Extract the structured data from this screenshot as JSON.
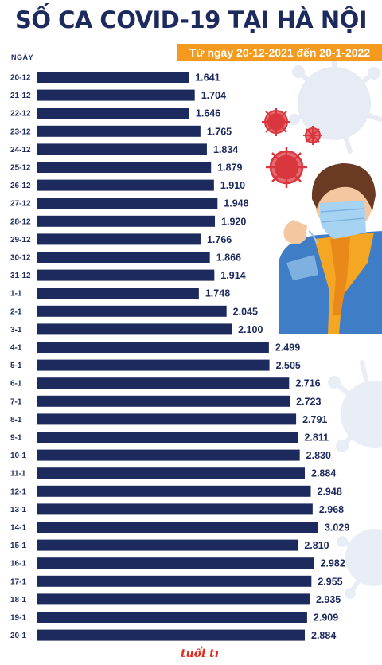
{
  "header": {
    "title": "SỐ CA COVID-19 TẠI HÀ NỘI",
    "subtitle": "Từ ngày 20-12-2021 đến 20-1-2022",
    "axis_label": "NGÀY"
  },
  "logo_text": "tuổi trẻ",
  "colors": {
    "bar": "#1d2a5e",
    "accent": "#f39a1f",
    "virus": "#d9363e",
    "text": "#1d2a5e"
  },
  "chart_data": {
    "type": "bar",
    "orientation": "horizontal",
    "title": "SỐ CA COVID-19 TẠI HÀ NỘI",
    "subtitle": "Từ ngày 20-12-2021 đến 20-1-2022",
    "ylabel": "NGÀY",
    "categories": [
      "20-12",
      "21-12",
      "22-12",
      "23-12",
      "24-12",
      "25-12",
      "26-12",
      "27-12",
      "28-12",
      "29-12",
      "30-12",
      "31-12",
      "1-1",
      "2-1",
      "3-1",
      "4-1",
      "5-1",
      "6-1",
      "7-1",
      "8-1",
      "9-1",
      "10-1",
      "11-1",
      "12-1",
      "13-1",
      "14-1",
      "15-1",
      "16-1",
      "17-1",
      "18-1",
      "19-1",
      "20-1"
    ],
    "values": [
      1641,
      1704,
      1646,
      1765,
      1834,
      1879,
      1910,
      1948,
      1920,
      1766,
      1866,
      1914,
      1748,
      2045,
      2100,
      2499,
      2505,
      2716,
      2723,
      2791,
      2811,
      2830,
      2884,
      2948,
      2968,
      3029,
      2810,
      2982,
      2955,
      2935,
      2909,
      2884
    ],
    "value_labels": [
      "1.641",
      "1.704",
      "1.646",
      "1.765",
      "1.834",
      "1.879",
      "1.910",
      "1.948",
      "1.920",
      "1.766",
      "1.866",
      "1.914",
      "1.748",
      "2.045",
      "2.100",
      "2.499",
      "2.505",
      "2.716",
      "2.723",
      "2.791",
      "2.811",
      "2.830",
      "2.884",
      "2.948",
      "2.968",
      "3.029",
      "2.810",
      "2.982",
      "2.955",
      "2.935",
      "2.909",
      "2.884"
    ],
    "grid": false,
    "legend": "none"
  }
}
